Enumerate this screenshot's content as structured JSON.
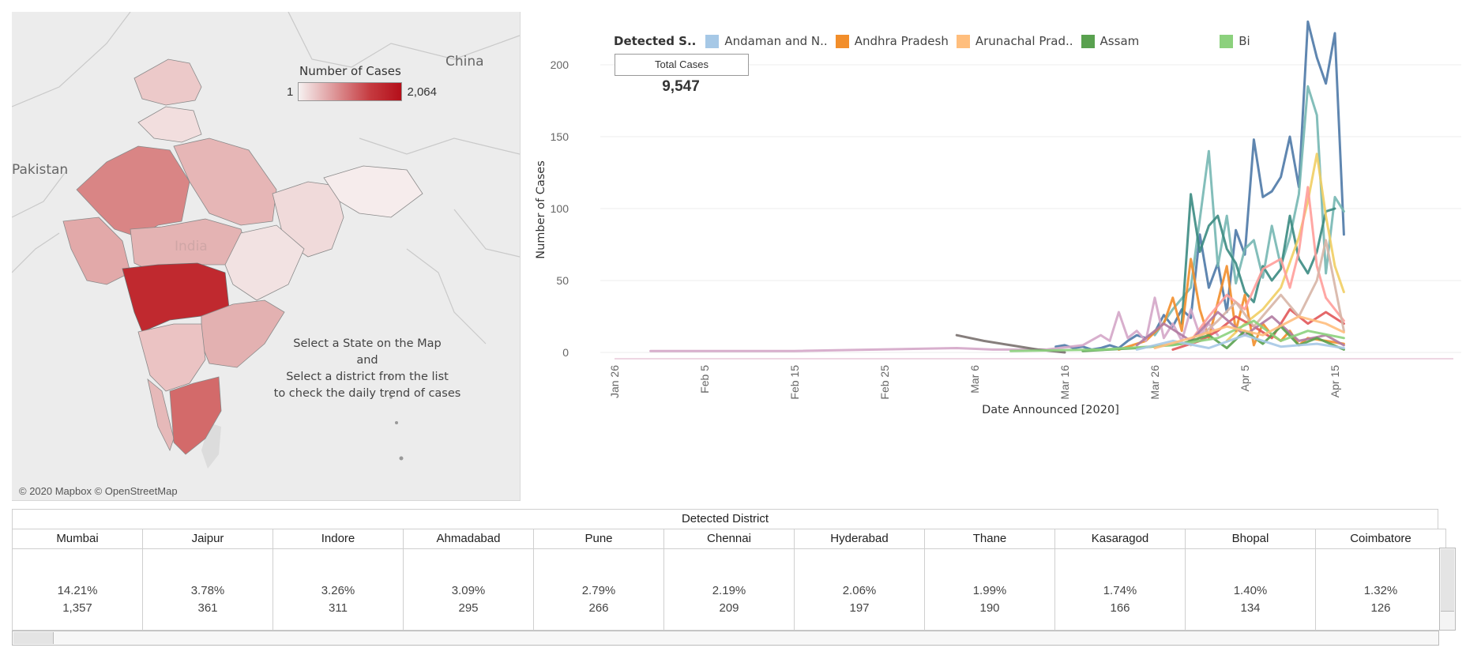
{
  "map": {
    "labels": {
      "pakistan": "Pakistan",
      "china": "China",
      "india": "India"
    },
    "legend": {
      "title": "Number of Cases",
      "min": "1",
      "max": "2,064"
    },
    "instructions": [
      "Select a State on the Map",
      "and",
      "Select a district from the list",
      "to check the daily trend of cases"
    ],
    "copyright": "© 2020 Mapbox © OpenStreetMap"
  },
  "chart": {
    "legend_heading": "Detected S..",
    "legend_items": [
      {
        "label": "Andaman and N..",
        "color": "#a6c8e6"
      },
      {
        "label": "Andhra Pradesh",
        "color": "#f28e2b"
      },
      {
        "label": "Arunachal Prad..",
        "color": "#ffbe7d"
      },
      {
        "label": "Assam",
        "color": "#59a14f"
      },
      {
        "label": "Bi",
        "color": "#8cd17d"
      }
    ],
    "total_label": "Total Cases",
    "total_value": "9,547"
  },
  "chart_data": {
    "type": "line",
    "xlabel": "Date Announced [2020]",
    "ylabel": "Number of Cases",
    "x_ticks": [
      "Jan 26",
      "Feb 5",
      "Feb 15",
      "Feb 25",
      "Mar 6",
      "Mar 16",
      "Mar 26",
      "Apr 5",
      "Apr 15"
    ],
    "y_ticks": [
      "0",
      "50",
      "100",
      "150",
      "200"
    ],
    "ylim": [
      0,
      230
    ],
    "x_start": "2020-01-26",
    "grid": true,
    "series": [
      {
        "color": "#4e79a7",
        "points": [
          [
            "2020-03-15",
            4
          ],
          [
            "2020-03-16",
            5
          ],
          [
            "2020-03-17",
            3
          ],
          [
            "2020-03-18",
            4
          ],
          [
            "2020-03-19",
            2
          ],
          [
            "2020-03-20",
            3
          ],
          [
            "2020-03-21",
            5
          ],
          [
            "2020-03-22",
            3
          ],
          [
            "2020-03-23",
            8
          ],
          [
            "2020-03-24",
            12
          ],
          [
            "2020-03-25",
            10
          ],
          [
            "2020-03-26",
            14
          ],
          [
            "2020-03-27",
            26
          ],
          [
            "2020-03-28",
            18
          ],
          [
            "2020-03-29",
            30
          ],
          [
            "2020-03-30",
            24
          ],
          [
            "2020-03-31",
            82
          ],
          [
            "2020-04-01",
            45
          ],
          [
            "2020-04-02",
            62
          ],
          [
            "2020-04-03",
            28
          ],
          [
            "2020-04-04",
            85
          ],
          [
            "2020-04-05",
            68
          ],
          [
            "2020-04-06",
            148
          ],
          [
            "2020-04-07",
            108
          ],
          [
            "2020-04-08",
            112
          ],
          [
            "2020-04-09",
            122
          ],
          [
            "2020-04-10",
            150
          ],
          [
            "2020-04-11",
            115
          ],
          [
            "2020-04-12",
            230
          ],
          [
            "2020-04-13",
            205
          ],
          [
            "2020-04-14",
            187
          ],
          [
            "2020-04-15",
            222
          ],
          [
            "2020-04-16",
            82
          ]
        ]
      },
      {
        "color": "#76b7b2",
        "points": [
          [
            "2020-03-26",
            12
          ],
          [
            "2020-03-28",
            30
          ],
          [
            "2020-03-30",
            45
          ],
          [
            "2020-04-01",
            140
          ],
          [
            "2020-04-02",
            60
          ],
          [
            "2020-04-03",
            95
          ],
          [
            "2020-04-04",
            48
          ],
          [
            "2020-04-05",
            72
          ],
          [
            "2020-04-06",
            78
          ],
          [
            "2020-04-07",
            52
          ],
          [
            "2020-04-08",
            88
          ],
          [
            "2020-04-09",
            60
          ],
          [
            "2020-04-10",
            80
          ],
          [
            "2020-04-11",
            110
          ],
          [
            "2020-04-12",
            185
          ],
          [
            "2020-04-13",
            165
          ],
          [
            "2020-04-14",
            55
          ],
          [
            "2020-04-15",
            108
          ],
          [
            "2020-04-16",
            98
          ]
        ]
      },
      {
        "color": "#3b8b82",
        "points": [
          [
            "2020-03-29",
            20
          ],
          [
            "2020-03-30",
            110
          ],
          [
            "2020-03-31",
            70
          ],
          [
            "2020-04-01",
            88
          ],
          [
            "2020-04-02",
            95
          ],
          [
            "2020-04-03",
            72
          ],
          [
            "2020-04-04",
            62
          ],
          [
            "2020-04-05",
            42
          ],
          [
            "2020-04-06",
            35
          ],
          [
            "2020-04-07",
            60
          ],
          [
            "2020-04-08",
            50
          ],
          [
            "2020-04-09",
            58
          ],
          [
            "2020-04-10",
            95
          ],
          [
            "2020-04-11",
            65
          ],
          [
            "2020-04-12",
            55
          ],
          [
            "2020-04-13",
            70
          ],
          [
            "2020-04-14",
            98
          ],
          [
            "2020-04-15",
            100
          ]
        ]
      },
      {
        "color": "#f1ce63",
        "points": [
          [
            "2020-04-03",
            8
          ],
          [
            "2020-04-05",
            20
          ],
          [
            "2020-04-07",
            30
          ],
          [
            "2020-04-09",
            45
          ],
          [
            "2020-04-11",
            80
          ],
          [
            "2020-04-12",
            105
          ],
          [
            "2020-04-13",
            138
          ],
          [
            "2020-04-14",
            95
          ],
          [
            "2020-04-15",
            60
          ],
          [
            "2020-04-16",
            42
          ]
        ]
      },
      {
        "color": "#f28e2b",
        "points": [
          [
            "2020-03-22",
            2
          ],
          [
            "2020-03-25",
            8
          ],
          [
            "2020-03-27",
            20
          ],
          [
            "2020-03-28",
            38
          ],
          [
            "2020-03-29",
            15
          ],
          [
            "2020-03-30",
            65
          ],
          [
            "2020-03-31",
            30
          ],
          [
            "2020-04-01",
            10
          ],
          [
            "2020-04-02",
            35
          ],
          [
            "2020-04-03",
            60
          ],
          [
            "2020-04-04",
            15
          ],
          [
            "2020-04-05",
            40
          ],
          [
            "2020-04-06",
            5
          ],
          [
            "2020-04-07",
            20
          ],
          [
            "2020-04-08",
            12
          ],
          [
            "2020-04-09",
            8
          ],
          [
            "2020-04-10",
            15
          ],
          [
            "2020-04-11",
            5
          ],
          [
            "2020-04-12",
            10
          ],
          [
            "2020-04-14",
            8
          ],
          [
            "2020-04-16",
            6
          ]
        ]
      },
      {
        "color": "#ff9d9a",
        "points": [
          [
            "2020-03-30",
            8
          ],
          [
            "2020-04-01",
            25
          ],
          [
            "2020-04-03",
            40
          ],
          [
            "2020-04-05",
            30
          ],
          [
            "2020-04-07",
            58
          ],
          [
            "2020-04-09",
            65
          ],
          [
            "2020-04-10",
            45
          ],
          [
            "2020-04-11",
            70
          ],
          [
            "2020-04-12",
            115
          ],
          [
            "2020-04-13",
            60
          ],
          [
            "2020-04-14",
            38
          ],
          [
            "2020-04-15",
            30
          ],
          [
            "2020-04-16",
            22
          ]
        ]
      },
      {
        "color": "#d4a6c8",
        "points": [
          [
            "2020-01-30",
            1
          ],
          [
            "2020-02-15",
            1
          ],
          [
            "2020-03-04",
            3
          ],
          [
            "2020-03-08",
            2
          ],
          [
            "2020-03-14",
            2
          ],
          [
            "2020-03-18",
            5
          ],
          [
            "2020-03-20",
            12
          ],
          [
            "2020-03-21",
            8
          ],
          [
            "2020-03-22",
            28
          ],
          [
            "2020-03-23",
            10
          ],
          [
            "2020-03-24",
            15
          ],
          [
            "2020-03-25",
            8
          ],
          [
            "2020-03-26",
            38
          ],
          [
            "2020-03-27",
            10
          ],
          [
            "2020-03-28",
            20
          ],
          [
            "2020-03-29",
            8
          ],
          [
            "2020-03-30",
            30
          ],
          [
            "2020-03-31",
            12
          ],
          [
            "2020-04-01",
            20
          ],
          [
            "2020-04-02",
            12
          ]
        ]
      },
      {
        "color": "#79706e",
        "points": [
          [
            "2020-03-04",
            12
          ],
          [
            "2020-03-07",
            8
          ],
          [
            "2020-03-10",
            5
          ],
          [
            "2020-03-13",
            2
          ],
          [
            "2020-03-16",
            0
          ]
        ]
      },
      {
        "color": "#e15759",
        "points": [
          [
            "2020-03-28",
            2
          ],
          [
            "2020-03-31",
            8
          ],
          [
            "2020-04-02",
            15
          ],
          [
            "2020-04-04",
            25
          ],
          [
            "2020-04-06",
            18
          ],
          [
            "2020-04-08",
            10
          ],
          [
            "2020-04-10",
            30
          ],
          [
            "2020-04-12",
            20
          ],
          [
            "2020-04-14",
            28
          ],
          [
            "2020-04-16",
            20
          ]
        ]
      },
      {
        "color": "#d7b5a6",
        "points": [
          [
            "2020-03-30",
            5
          ],
          [
            "2020-04-02",
            22
          ],
          [
            "2020-04-04",
            35
          ],
          [
            "2020-04-06",
            18
          ],
          [
            "2020-04-09",
            40
          ],
          [
            "2020-04-11",
            25
          ],
          [
            "2020-04-13",
            50
          ],
          [
            "2020-04-14",
            78
          ],
          [
            "2020-04-16",
            15
          ]
        ]
      },
      {
        "color": "#b07aa1",
        "points": [
          [
            "2020-03-24",
            5
          ],
          [
            "2020-03-27",
            20
          ],
          [
            "2020-03-30",
            8
          ],
          [
            "2020-04-02",
            28
          ],
          [
            "2020-04-05",
            12
          ],
          [
            "2020-04-08",
            25
          ],
          [
            "2020-04-11",
            8
          ],
          [
            "2020-04-14",
            12
          ],
          [
            "2020-04-16",
            5
          ]
        ]
      },
      {
        "color": "#59a14f",
        "points": [
          [
            "2020-03-18",
            1
          ],
          [
            "2020-03-24",
            3
          ],
          [
            "2020-03-29",
            6
          ],
          [
            "2020-04-01",
            12
          ],
          [
            "2020-04-03",
            3
          ],
          [
            "2020-04-05",
            15
          ],
          [
            "2020-04-07",
            6
          ],
          [
            "2020-04-09",
            18
          ],
          [
            "2020-04-11",
            5
          ],
          [
            "2020-04-13",
            10
          ],
          [
            "2020-04-16",
            2
          ]
        ]
      },
      {
        "color": "#8cd17d",
        "points": [
          [
            "2020-03-10",
            1
          ],
          [
            "2020-03-20",
            2
          ],
          [
            "2020-03-28",
            5
          ],
          [
            "2020-04-02",
            10
          ],
          [
            "2020-04-06",
            22
          ],
          [
            "2020-04-09",
            8
          ],
          [
            "2020-04-12",
            15
          ],
          [
            "2020-04-16",
            10
          ]
        ]
      },
      {
        "color": "#a6c8e6",
        "points": [
          [
            "2020-03-24",
            2
          ],
          [
            "2020-03-28",
            8
          ],
          [
            "2020-04-01",
            3
          ],
          [
            "2020-04-05",
            12
          ],
          [
            "2020-04-09",
            4
          ],
          [
            "2020-04-13",
            6
          ],
          [
            "2020-04-16",
            3
          ]
        ]
      },
      {
        "color": "#ffbe7d",
        "points": [
          [
            "2020-03-26",
            3
          ],
          [
            "2020-03-30",
            10
          ],
          [
            "2020-04-03",
            18
          ],
          [
            "2020-04-07",
            12
          ],
          [
            "2020-04-11",
            25
          ],
          [
            "2020-04-14",
            20
          ],
          [
            "2020-04-16",
            14
          ]
        ]
      }
    ]
  },
  "table": {
    "title": "Detected District",
    "districts": [
      {
        "name": "Mumbai",
        "pct": "14.21%",
        "count": "1,357"
      },
      {
        "name": "Jaipur",
        "pct": "3.78%",
        "count": "361"
      },
      {
        "name": "Indore",
        "pct": "3.26%",
        "count": "311"
      },
      {
        "name": "Ahmadabad",
        "pct": "3.09%",
        "count": "295"
      },
      {
        "name": "Pune",
        "pct": "2.79%",
        "count": "266"
      },
      {
        "name": "Chennai",
        "pct": "2.19%",
        "count": "209"
      },
      {
        "name": "Hyderabad",
        "pct": "2.06%",
        "count": "197"
      },
      {
        "name": "Thane",
        "pct": "1.99%",
        "count": "190"
      },
      {
        "name": "Kasaragod",
        "pct": "1.74%",
        "count": "166"
      },
      {
        "name": "Bhopal",
        "pct": "1.40%",
        "count": "134"
      },
      {
        "name": "Coimbatore",
        "pct": "1.32%",
        "count": "126"
      }
    ]
  }
}
